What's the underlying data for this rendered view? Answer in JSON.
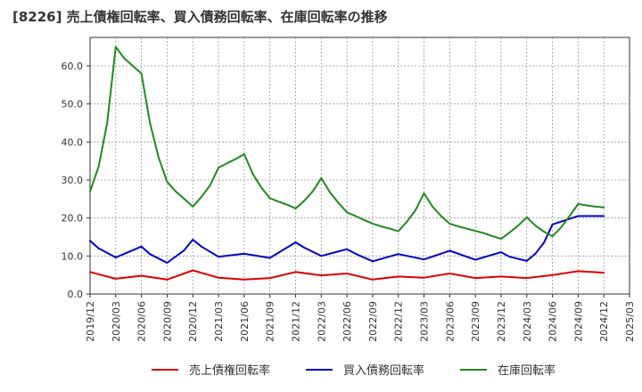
{
  "chart_data": {
    "type": "line",
    "title": "[8226]  売上債権回転率、買入債務回転率、在庫回転率の推移",
    "xlabel": "",
    "ylabel": "",
    "ylim": [
      0,
      67.5
    ],
    "yticks": [
      0,
      10,
      20,
      30,
      40,
      50,
      60
    ],
    "ytick_labels": [
      "0.0",
      "10.0",
      "20.0",
      "30.0",
      "40.0",
      "50.0",
      "60.0"
    ],
    "xtick_labels": [
      "2019/12",
      "2020/03",
      "2020/06",
      "2020/09",
      "2020/12",
      "2021/03",
      "2021/06",
      "2021/09",
      "2021/12",
      "2022/03",
      "2022/06",
      "2022/09",
      "2022/12",
      "2023/03",
      "2023/06",
      "2023/09",
      "2023/12",
      "2024/03",
      "2024/06",
      "2024/09",
      "2024/12",
      "2025/03"
    ],
    "x_range_months": [
      0,
      63
    ],
    "grid": true,
    "legend_position": "bottom",
    "series": [
      {
        "name": "売上債権回転率",
        "color": "#dd0000",
        "x": [
          0,
          3,
          6,
          9,
          12,
          15,
          18,
          21,
          24,
          27,
          30,
          33,
          36,
          39,
          42,
          45,
          48,
          51,
          54,
          57,
          60
        ],
        "values": [
          5.8,
          4.0,
          4.8,
          3.8,
          6.2,
          4.3,
          3.8,
          4.2,
          5.8,
          4.9,
          5.4,
          3.8,
          4.6,
          4.3,
          5.4,
          4.2,
          4.6,
          4.2,
          5.0,
          6.0,
          5.6
        ]
      },
      {
        "name": "買入債務回転率",
        "color": "#0000cc",
        "x": [
          0,
          1,
          3,
          6,
          7,
          9,
          11,
          12,
          13,
          15,
          18,
          21,
          24,
          25,
          27,
          30,
          31,
          33,
          36,
          39,
          42,
          45,
          48,
          49,
          51,
          52,
          53,
          54,
          57,
          60
        ],
        "values": [
          14.0,
          12.0,
          9.6,
          12.5,
          10.5,
          8.2,
          11.5,
          14.3,
          12.5,
          9.8,
          10.6,
          9.5,
          13.6,
          12.2,
          10.0,
          11.8,
          10.6,
          8.6,
          10.5,
          9.1,
          11.4,
          9.0,
          11.0,
          9.8,
          8.7,
          10.6,
          13.5,
          18.3,
          20.5,
          20.5
        ]
      },
      {
        "name": "在庫回転率",
        "color": "#228822",
        "x": [
          0,
          1,
          2,
          3,
          4,
          5,
          6,
          7,
          8,
          9,
          10,
          11,
          12,
          13,
          14,
          15,
          16,
          17,
          18,
          19,
          20,
          21,
          22,
          23,
          24,
          25,
          26,
          27,
          28,
          29,
          30,
          31,
          32,
          33,
          34,
          35,
          36,
          37,
          38,
          39,
          40,
          41,
          42,
          43,
          44,
          45,
          46,
          47,
          48,
          49,
          50,
          51,
          52,
          53,
          54,
          55,
          56,
          57,
          58,
          59,
          60
        ],
        "values": [
          27.0,
          33.5,
          45.0,
          65.0,
          62.0,
          60.0,
          58.0,
          45.0,
          36.0,
          29.5,
          27.0,
          25.0,
          23.0,
          25.5,
          28.5,
          33.2,
          34.4,
          35.5,
          36.8,
          31.6,
          28.0,
          25.2,
          24.3,
          23.5,
          22.5,
          24.5,
          27.0,
          30.5,
          26.8,
          24.0,
          21.5,
          20.5,
          19.5,
          18.5,
          17.8,
          17.2,
          16.5,
          19.0,
          22.0,
          26.5,
          23.0,
          20.5,
          18.5,
          17.8,
          17.2,
          16.6,
          16.0,
          15.2,
          14.5,
          16.2,
          18.0,
          20.2,
          18.0,
          16.4,
          15.2,
          17.5,
          20.5,
          23.7,
          23.3,
          23.0,
          22.8
        ]
      }
    ]
  }
}
